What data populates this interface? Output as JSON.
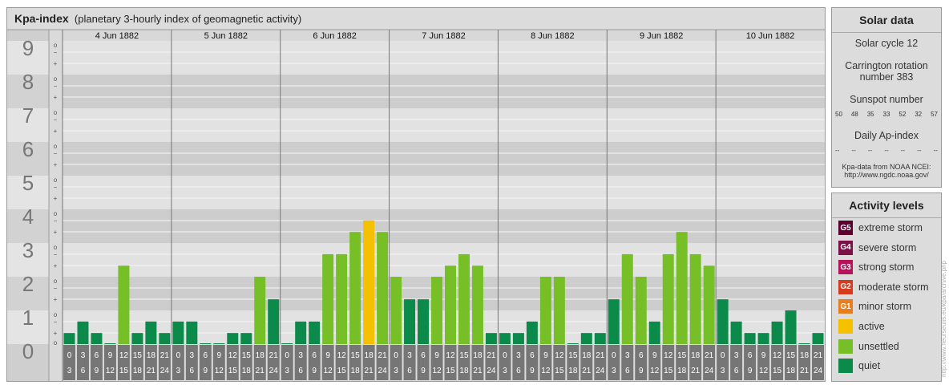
{
  "title": {
    "main": "Kpa-index",
    "sub": "(planetary 3-hourly index of geomagnetic activity)"
  },
  "colors": {
    "quiet": "#0b8a4a",
    "unsettled": "#77bf26",
    "active": "#f4c000",
    "minor_storm": "#e87d1e",
    "moderate_storm": "#d63b20",
    "strong_storm": "#b5135a",
    "severe_storm": "#7d1048",
    "extreme_storm": "#5c0030"
  },
  "chart_data": {
    "type": "bar",
    "days": [
      "4 Jun 1882",
      "5 Jun 1882",
      "6 Jun 1882",
      "7 Jun 1882",
      "8 Jun 1882",
      "9 Jun 1882",
      "10 Jun 1882"
    ],
    "interval_labels": [
      [
        "0",
        "3"
      ],
      [
        "3",
        "6"
      ],
      [
        "6",
        "9"
      ],
      [
        "9",
        "12"
      ],
      [
        "12",
        "15"
      ],
      [
        "15",
        "18"
      ],
      [
        "18",
        "21"
      ],
      [
        "21",
        "24"
      ]
    ],
    "y_tick_labels": [
      "0",
      "1",
      "2",
      "3",
      "4",
      "5",
      "6",
      "7",
      "8",
      "9"
    ],
    "y_sub_labels": [
      "o",
      "+",
      "−"
    ],
    "ylim": [
      0,
      9
    ],
    "values": [
      0.33,
      0.67,
      0.33,
      0,
      2.33,
      0.33,
      0.67,
      0.33,
      0.67,
      0.67,
      0,
      0,
      0.33,
      0.33,
      2,
      1.33,
      0,
      0.67,
      0.67,
      2.67,
      2.67,
      3.33,
      3.67,
      3.33,
      2,
      1.33,
      1.33,
      2,
      2.33,
      2.67,
      2.33,
      0.33,
      0.33,
      0.33,
      0.67,
      2,
      2,
      0,
      0.33,
      0.33,
      1.33,
      2.67,
      2,
      0.67,
      2.67,
      3.33,
      2.67,
      2.33,
      1.33,
      0.67,
      0.33,
      0.33,
      0.67,
      1,
      0,
      0.33
    ],
    "levels": [
      "quiet",
      "quiet",
      "quiet",
      "quiet",
      "unsettled",
      "quiet",
      "quiet",
      "quiet",
      "quiet",
      "quiet",
      "quiet",
      "quiet",
      "quiet",
      "quiet",
      "unsettled",
      "quiet",
      "quiet",
      "quiet",
      "quiet",
      "unsettled",
      "unsettled",
      "unsettled",
      "active",
      "unsettled",
      "unsettled",
      "quiet",
      "quiet",
      "unsettled",
      "unsettled",
      "unsettled",
      "unsettled",
      "quiet",
      "quiet",
      "quiet",
      "quiet",
      "unsettled",
      "unsettled",
      "quiet",
      "quiet",
      "quiet",
      "quiet",
      "unsettled",
      "unsettled",
      "quiet",
      "unsettled",
      "unsettled",
      "unsettled",
      "unsettled",
      "quiet",
      "quiet",
      "quiet",
      "quiet",
      "quiet",
      "quiet",
      "quiet",
      "quiet"
    ]
  },
  "solar": {
    "heading": "Solar data",
    "cycle": "Solar cycle 12",
    "carrington_line1": "Carrington rotation",
    "carrington_line2": "number 383",
    "sunspot_heading": "Sunspot number",
    "sunspot_values": [
      "50",
      "48",
      "35",
      "33",
      "52",
      "32",
      "57"
    ],
    "ap_heading": "Daily Ap-index",
    "ap_values": [
      "--",
      "--",
      "--",
      "--",
      "--",
      "--",
      "--"
    ],
    "source_line1": "Kpa-data from NOAA NCEI:",
    "source_line2": "http://www.ngdc.noaa.gov/"
  },
  "activity": {
    "heading": "Activity levels",
    "items": [
      {
        "badge": "G5",
        "label": "extreme storm",
        "color": "#5c0030"
      },
      {
        "badge": "G4",
        "label": "severe storm",
        "color": "#7d1048"
      },
      {
        "badge": "G3",
        "label": "strong storm",
        "color": "#b5135a"
      },
      {
        "badge": "G2",
        "label": "moderate storm",
        "color": "#d63b20"
      },
      {
        "badge": "G1",
        "label": "minor storm",
        "color": "#e87d1e"
      },
      {
        "badge": "",
        "label": "active",
        "color": "#f4c000"
      },
      {
        "badge": "",
        "label": "unsettled",
        "color": "#77bf26"
      },
      {
        "badge": "",
        "label": "quiet",
        "color": "#0b8a4a"
      }
    ]
  },
  "watermark": "http://www.fleurseulis.eu/kpa/archive.php"
}
